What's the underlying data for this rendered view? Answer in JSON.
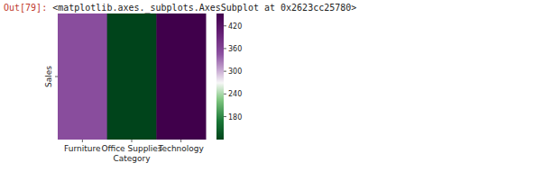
{
  "header": {
    "prompt": "Out[79]:",
    "text": "<matplotlib.axes._subplots.AxesSubplot at 0x2623cc25780>"
  },
  "chart_data": {
    "type": "heatmap",
    "categories": [
      "Furniture",
      "Office Supplies",
      "Technology"
    ],
    "rows": [
      "Sales"
    ],
    "values": [
      [
        349.83,
        119.32,
        452.71
      ]
    ],
    "x_label": "Category",
    "colorbar": {
      "range": [
        119.32,
        452.71
      ],
      "ticks": [
        180,
        240,
        300,
        360,
        420
      ]
    }
  }
}
